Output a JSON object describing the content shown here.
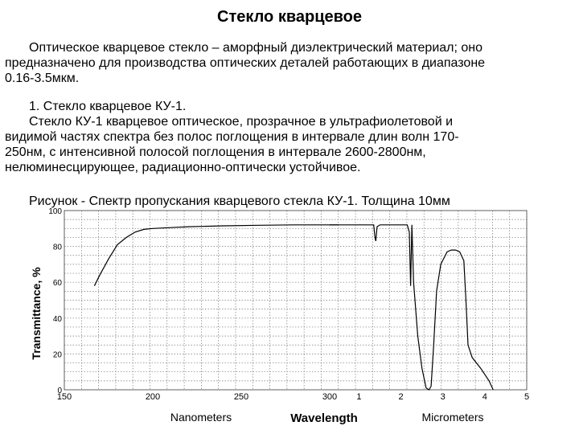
{
  "page": {
    "title": "Стекло кварцевое",
    "para1_line1": "Оптическое кварцевое стекло – аморфный диэлектрический материал; оно",
    "para1_line2": "предназначено для производства оптических деталей работающих в диапазоне",
    "para1_line3": "0.16-3.5мкм.",
    "para2_line1": "1. Стекло кварцевое КУ-1.",
    "para2_line2": "Стекло КУ-1 кварцевое оптическое, прозрачное в ультрафиолетовой и",
    "para2_line3": "видимой частях спектра без полос поглощения в интервале длин волн 170-",
    "para2_line4": "250нм, с интенсивной полосой поглощения в интервале 2600-2800нм,",
    "para2_line5": "нелюминесцирующее, радиационно-оптически устойчивое.",
    "caption": "Рисунок - Спектр пропускания кварцевого стекла КУ-1. Толщина 10мм"
  },
  "chart_data": {
    "type": "line",
    "ylabel": "Transmittance, %",
    "xlabel": "Wavelength",
    "xlabel_left": "Nanometers",
    "xlabel_right": "Micrometers",
    "ylim": [
      0,
      100
    ],
    "yticks": [
      "0",
      "20",
      "40",
      "60",
      "80",
      "100"
    ],
    "xticks_nm": [
      "150",
      "200",
      "250",
      "300"
    ],
    "xticks_um": [
      "1",
      "2",
      "3",
      "4",
      "5"
    ],
    "grid": true,
    "series": [
      {
        "segment": "nanometers",
        "x_nm": [
          167,
          170,
          175,
          180,
          185,
          190,
          195,
          200,
          210,
          220,
          240,
          260,
          280,
          300,
          305
        ],
        "y": [
          58,
          64,
          73,
          81,
          85,
          88,
          89.5,
          90,
          90.5,
          91,
          91.5,
          91.8,
          92,
          92,
          92
        ]
      },
      {
        "segment": "micrometers",
        "x_um": [
          0.3,
          0.8,
          1.2,
          1.35,
          1.38,
          1.4,
          1.43,
          1.5,
          1.8,
          2.0,
          2.15,
          2.2,
          2.23,
          2.26,
          2.3,
          2.4,
          2.5,
          2.6,
          2.67,
          2.72,
          2.78,
          2.85,
          2.95,
          3.1,
          3.2,
          3.3,
          3.4,
          3.5,
          3.55,
          3.6,
          3.7,
          3.9,
          4.1,
          4.2
        ],
        "y": [
          92,
          92,
          92,
          92,
          85,
          83,
          91,
          92,
          92,
          92,
          92,
          88,
          58,
          92,
          60,
          30,
          12,
          1,
          0,
          2,
          25,
          55,
          70,
          77,
          78,
          78,
          77,
          72,
          50,
          25,
          18,
          12,
          5,
          0
        ]
      }
    ]
  }
}
